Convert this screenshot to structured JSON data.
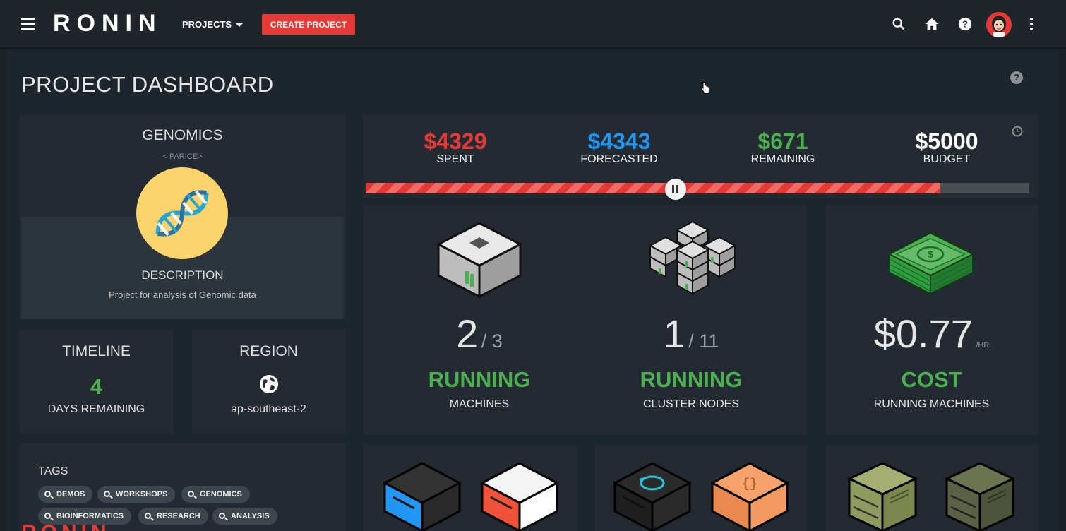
{
  "header": {
    "logo": "RONIN",
    "projects_label": "PROJECTS",
    "create_button": "CREATE PROJECT"
  },
  "page": {
    "title": "PROJECT DASHBOARD"
  },
  "project": {
    "name": "GENOMICS",
    "owner": "< PARICE>",
    "description_title": "DESCRIPTION",
    "description": "Project for analysis of Genomic data"
  },
  "timeline": {
    "title": "TIMELINE",
    "days": "4",
    "label": "DAYS REMAINING"
  },
  "region": {
    "title": "REGION",
    "value": "ap-southeast-2"
  },
  "budget": {
    "spent": "$4329",
    "spent_label": "SPENT",
    "forecasted": "$4343",
    "forecasted_label": "FORECASTED",
    "remaining": "$671",
    "remaining_label": "REMAINING",
    "total": "$5000",
    "total_label": "BUDGET",
    "spent_fraction": 0.8658,
    "colors": {
      "spent": "#e53935",
      "forecasted": "#2196f3",
      "remaining": "#4caf50",
      "total": "#ffffff"
    }
  },
  "machines": {
    "running": "2",
    "total": "/ 3",
    "status": "RUNNING",
    "label": "MACHINES"
  },
  "cluster": {
    "running": "1",
    "total": "/ 11",
    "status": "RUNNING",
    "label": "CLUSTER NODES"
  },
  "cost": {
    "value": "$0.77",
    "unit": "/HR",
    "status": "COST",
    "label": "RUNNING MACHINES"
  },
  "tags": {
    "title": "TAGS",
    "items": [
      "DEMOS",
      "WORKSHOPS",
      "GENOMICS",
      "BIOINFORMATICS",
      "RESEARCH",
      "ANALYSIS"
    ]
  },
  "footer_watermark": "RONIN",
  "icons": [
    "menu-icon",
    "search-icon",
    "home-icon",
    "help-icon",
    "user-avatar",
    "more-vert-icon",
    "clock-icon",
    "pause-icon",
    "globe-icon",
    "dna-icon",
    "server-icon",
    "cluster-icon",
    "money-icon"
  ]
}
